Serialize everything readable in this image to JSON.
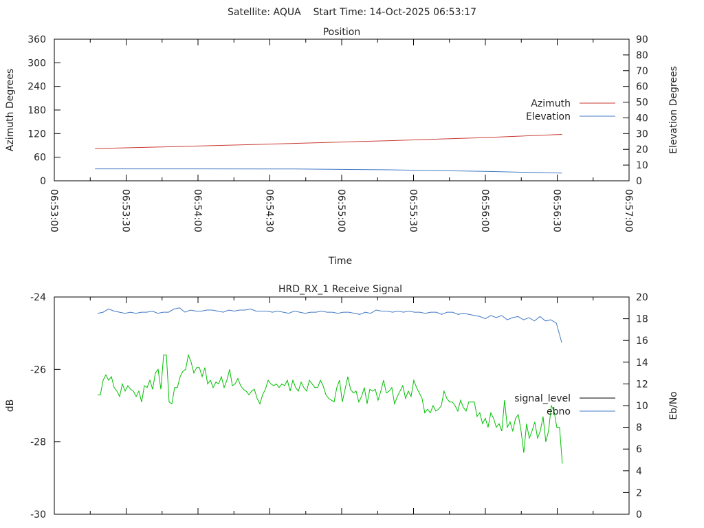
{
  "header": {
    "title": "Satellite: AQUA    Start Time: 14-Oct-2025 06:53:17"
  },
  "colors": {
    "azimuth": "#c83a32",
    "elevation": "#3f78c4",
    "signal_level": "#000000",
    "ebno": "#3f78c4",
    "green_series": "#00c000"
  },
  "chart_data": [
    {
      "type": "line",
      "title": "Position",
      "xlabel": "Time",
      "ylabel": "Azimuth Degrees",
      "y2label": "Elevation Degrees",
      "xlim_seconds": [
        0,
        240
      ],
      "ylim": [
        0,
        360
      ],
      "y2lim": [
        0,
        90
      ],
      "x_tick_labels": [
        "06:53:00",
        "06:53:30",
        "06:54:00",
        "06:54:30",
        "06:55:00",
        "06:55:30",
        "06:56:00",
        "06:56:30",
        "06:57:00"
      ],
      "y_tick_labels": [
        "0",
        "60",
        "120",
        "180",
        "240",
        "300",
        "360"
      ],
      "y2_tick_labels": [
        "0",
        "10",
        "20",
        "30",
        "40",
        "50",
        "60",
        "70",
        "80",
        "90"
      ],
      "legend_position": "right",
      "x_seconds": [
        17,
        60,
        100,
        140,
        180,
        212
      ],
      "series": [
        {
          "name": "Azimuth",
          "axis": "y",
          "values": [
            82,
            88.5,
            95,
            102,
            110,
            118
          ]
        },
        {
          "name": "Elevation",
          "axis": "y2",
          "values": [
            7.6,
            7.6,
            7.5,
            7.0,
            6.0,
            4.9
          ]
        }
      ]
    },
    {
      "type": "line",
      "title": "HRD_RX_1 Receive Signal",
      "ylabel": "dB",
      "y2label": "Eb/No",
      "xlim_seconds": [
        0,
        240
      ],
      "ylim": [
        -30,
        -24
      ],
      "y2lim": [
        0,
        20
      ],
      "y_tick_labels": [
        "-30",
        "-28",
        "-26",
        "-24"
      ],
      "y2_tick_labels": [
        "0",
        "2",
        "4",
        "6",
        "8",
        "10",
        "12",
        "14",
        "16",
        "18",
        "20"
      ],
      "legend_position": "right",
      "legend": [
        "signal_level",
        "ebno"
      ],
      "series": [
        {
          "name": "ebno",
          "axis": "y2",
          "x_start_seconds": 18.1,
          "x_step_seconds": 2.28,
          "values": [
            18.5,
            18.6,
            18.9,
            18.7,
            18.6,
            18.5,
            18.6,
            18.5,
            18.6,
            18.6,
            18.7,
            18.5,
            18.6,
            18.6,
            18.9,
            19.0,
            18.6,
            18.8,
            18.7,
            18.7,
            18.8,
            18.8,
            18.7,
            18.6,
            18.8,
            18.7,
            18.8,
            18.8,
            18.9,
            18.7,
            18.7,
            18.7,
            18.6,
            18.7,
            18.6,
            18.5,
            18.7,
            18.6,
            18.5,
            18.6,
            18.6,
            18.7,
            18.6,
            18.6,
            18.5,
            18.6,
            18.6,
            18.5,
            18.4,
            18.6,
            18.5,
            18.8,
            18.7,
            18.7,
            18.6,
            18.7,
            18.6,
            18.7,
            18.6,
            18.6,
            18.5,
            18.6,
            18.6,
            18.4,
            18.6,
            18.6,
            18.4,
            18.5,
            18.4,
            18.3,
            18.2,
            18.0,
            18.3,
            18.1,
            18.3,
            17.9,
            18.1,
            18.2,
            17.9,
            18.1,
            17.8,
            18.2,
            17.8,
            17.9,
            17.6,
            15.8
          ]
        },
        {
          "name": "signal_level",
          "axis": "y",
          "x_start_seconds": 18.1,
          "x_step_seconds": 1.148,
          "values": [
            -26.7,
            -26.7,
            -26.3,
            -26.15,
            -26.3,
            -26.2,
            -26.5,
            -26.6,
            -26.75,
            -26.4,
            -26.6,
            -26.45,
            -26.55,
            -26.6,
            -26.75,
            -26.6,
            -26.9,
            -26.45,
            -26.5,
            -26.3,
            -26.55,
            -26.1,
            -26.0,
            -26.55,
            -25.6,
            -25.6,
            -26.9,
            -26.95,
            -26.5,
            -26.5,
            -26.2,
            -26.05,
            -26.0,
            -25.6,
            -25.8,
            -26.1,
            -25.95,
            -25.95,
            -26.2,
            -25.95,
            -26.4,
            -26.3,
            -26.5,
            -26.35,
            -26.4,
            -26.2,
            -26.5,
            -26.3,
            -26.0,
            -26.45,
            -26.4,
            -26.25,
            -26.45,
            -26.55,
            -26.6,
            -26.7,
            -26.6,
            -26.55,
            -26.8,
            -26.95,
            -26.7,
            -26.55,
            -26.3,
            -26.4,
            -26.45,
            -26.4,
            -26.5,
            -26.4,
            -26.45,
            -26.3,
            -26.6,
            -26.3,
            -26.5,
            -26.6,
            -26.35,
            -26.5,
            -26.6,
            -26.3,
            -26.4,
            -26.5,
            -26.5,
            -26.3,
            -26.45,
            -26.7,
            -26.8,
            -26.85,
            -26.9,
            -26.5,
            -26.3,
            -26.9,
            -26.55,
            -26.2,
            -26.55,
            -26.65,
            -26.6,
            -26.9,
            -26.75,
            -26.5,
            -26.95,
            -26.55,
            -26.6,
            -26.55,
            -26.85,
            -26.6,
            -26.3,
            -26.65,
            -26.6,
            -26.5,
            -26.95,
            -26.75,
            -26.6,
            -26.45,
            -26.8,
            -26.6,
            -26.75,
            -26.3,
            -26.5,
            -26.65,
            -26.8,
            -27.2,
            -27.1,
            -27.2,
            -27.0,
            -27.15,
            -27.1,
            -27.0,
            -26.6,
            -26.8,
            -26.9,
            -26.9,
            -27.0,
            -27.15,
            -26.85,
            -27.05,
            -27.15,
            -26.9,
            -26.9,
            -26.9,
            -27.3,
            -27.2,
            -27.5,
            -27.35,
            -27.6,
            -27.2,
            -27.35,
            -27.6,
            -27.5,
            -27.7,
            -26.85,
            -27.6,
            -27.45,
            -27.7,
            -27.35,
            -27.25,
            -27.7,
            -28.3,
            -27.5,
            -27.9,
            -27.7,
            -27.45,
            -27.9,
            -27.7,
            -27.3,
            -28.0,
            -27.7,
            -27.0,
            -27.15,
            -27.6,
            -27.6,
            -28.6
          ]
        }
      ]
    }
  ]
}
